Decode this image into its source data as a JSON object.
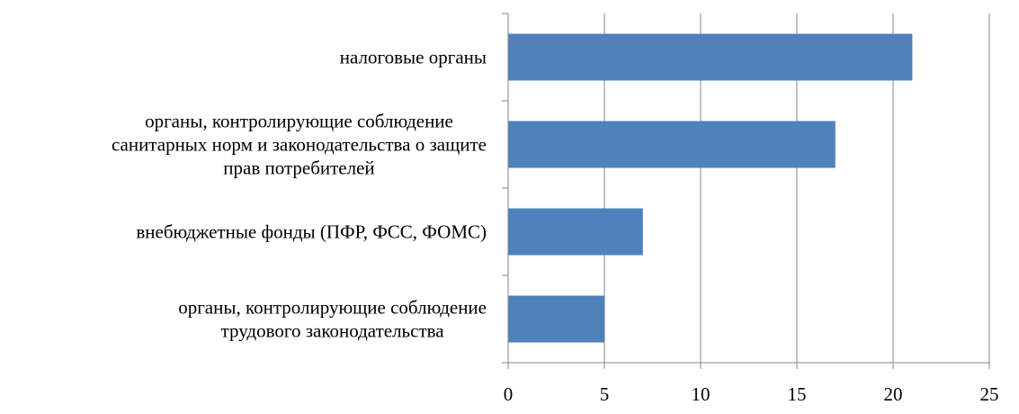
{
  "chart_data": {
    "type": "bar",
    "orientation": "horizontal",
    "categories": [
      [
        "налоговые органы"
      ],
      [
        "органы, контролирующие соблюдение",
        "санитарных норм и законодательства о защите",
        "прав потребителей"
      ],
      [
        "внебюджетные фонды (ПФР, ФСС, ФОМС)"
      ],
      [
        "органы, контролирующие соблюдение",
        "трудового законодательства"
      ]
    ],
    "values": [
      21,
      17,
      7,
      5
    ],
    "xlim": [
      0,
      25
    ],
    "xticks": [
      "0",
      "5",
      "10",
      "15",
      "20",
      "25"
    ],
    "title": "",
    "xlabel": "",
    "ylabel": "",
    "grid": "vertical",
    "legend": "none",
    "bar_color": "#4F81BD",
    "grid_color": "#868686"
  }
}
